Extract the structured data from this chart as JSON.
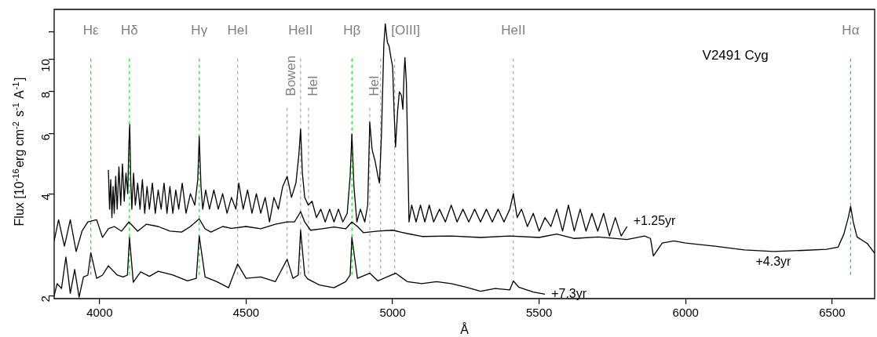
{
  "chart_data": {
    "type": "line",
    "xlabel": "Å",
    "ylabel": "Flux [10$^{-16}$erg cm$^{-2}$ s$^{-1}$ A$^{-1}$]",
    "annotations": [
      "V2491 Cyg"
    ],
    "log": "y",
    "marker": "none",
    "line_style": "solid",
    "legend": false,
    "grid": false,
    "xlim": [
      3845,
      6645
    ],
    "xticks": [
      4000,
      4500,
      5000,
      5500,
      6000,
      6500
    ],
    "ylim": [
      1.96,
      14
    ],
    "yticks": [
      2,
      4,
      6,
      8,
      10,
      {
        "value": 12,
        "label": null
      }
    ],
    "ref_lines": [
      {
        "axis": "x",
        "value": 3970,
        "label": "Hε",
        "color": "#00ee00",
        "line_style": "dashed"
      },
      {
        "axis": "x",
        "value": 4102,
        "label": "Hδ",
        "color": "#00ee00",
        "line_style": "dashed"
      },
      {
        "axis": "x",
        "value": 4340,
        "label": "Hγ",
        "color": "#00ee00",
        "line_style": "dashed"
      },
      {
        "axis": "x",
        "value": 4471,
        "label": "HeI",
        "color": "#aaaaaa",
        "line_style": "dashed"
      },
      {
        "axis": "x",
        "value": 4640,
        "label": "Bowen",
        "color": "#aaaaaa",
        "line_style": "dashed"
      },
      {
        "axis": "x",
        "value": 4686,
        "label": "HeII",
        "color": "#aaaaaa",
        "line_style": "dashed"
      },
      {
        "axis": "x",
        "value": 4713,
        "label": "HeI",
        "color": "#aaaaaa",
        "line_style": "dashed"
      },
      {
        "axis": "x",
        "value": 4861,
        "label": "Hβ",
        "color": "#00ee00",
        "line_style": "dashed"
      },
      {
        "axis": "x",
        "value": 4922,
        "label": "HeI",
        "color": "#aaaaaa",
        "line_style": "dashed"
      },
      {
        "axis": "x",
        "value": 4959,
        "label": null,
        "color": "#aaaaaa",
        "line_style": "dashed"
      },
      {
        "axis": "x",
        "value": 5007,
        "label": "[OIII]",
        "color": "#aaaaaa",
        "line_style": "dashed"
      },
      {
        "axis": "x",
        "value": 5412,
        "label": "HeII",
        "color": "#aaaaaa",
        "line_style": "dashed"
      },
      {
        "axis": "x",
        "value": 6563,
        "label": "Hα",
        "color": "#00ee00",
        "line_style": "dashed"
      }
    ],
    "series": [
      {
        "name": "+1.25yr",
        "color": "#000000",
        "x": [
          4030,
          4034,
          4038,
          4042,
          4046,
          4050,
          4055,
          4060,
          4066,
          4072,
          4078,
          4084,
          4090,
          4096,
          4100,
          4103,
          4106,
          4110,
          4116,
          4122,
          4130,
          4138,
          4146,
          4154,
          4162,
          4170,
          4180,
          4190,
          4200,
          4210,
          4220,
          4230,
          4240,
          4250,
          4260,
          4270,
          4282,
          4295,
          4310,
          4325,
          4335,
          4340,
          4346,
          4352,
          4362,
          4375,
          4390,
          4405,
          4420,
          4435,
          4450,
          4465,
          4475,
          4490,
          4505,
          4520,
          4535,
          4550,
          4565,
          4580,
          4595,
          4610,
          4625,
          4640,
          4655,
          4670,
          4680,
          4686,
          4692,
          4700,
          4712,
          4725,
          4740,
          4755,
          4770,
          4785,
          4800,
          4815,
          4830,
          4845,
          4855,
          4861,
          4868,
          4878,
          4890,
          4905,
          4915,
          4922,
          4930,
          4940,
          4950,
          4955,
          4962,
          4970,
          4975,
          4982,
          4988,
          4995,
          5000,
          5005,
          5010,
          5017,
          5023,
          5030,
          5035,
          5039,
          5042,
          5047,
          5052,
          5056,
          5065,
          5080,
          5095,
          5110,
          5125,
          5140,
          5160,
          5180,
          5200,
          5220,
          5240,
          5260,
          5280,
          5300,
          5320,
          5340,
          5360,
          5380,
          5400,
          5412,
          5425,
          5440,
          5460,
          5480,
          5500,
          5520,
          5540,
          5560,
          5580,
          5600,
          5620,
          5640,
          5660,
          5680,
          5700,
          5720,
          5740,
          5760,
          5780,
          5800
        ],
        "values": [
          4.7,
          3.6,
          4.4,
          3.4,
          4.2,
          3.5,
          4.5,
          3.6,
          4.8,
          3.7,
          4.9,
          3.8,
          4.6,
          4.0,
          5.6,
          6.4,
          4.5,
          3.6,
          4.6,
          3.7,
          4.3,
          3.6,
          4.4,
          3.5,
          4.2,
          3.6,
          4.3,
          3.5,
          4.1,
          3.6,
          4.3,
          3.5,
          4.2,
          3.5,
          4.1,
          3.6,
          4.3,
          3.5,
          4.0,
          3.7,
          4.4,
          5.9,
          4.2,
          3.6,
          4.1,
          3.6,
          4.1,
          3.6,
          4.0,
          3.5,
          3.9,
          3.6,
          4.3,
          3.6,
          4.1,
          3.5,
          4.0,
          3.5,
          3.9,
          3.3,
          3.9,
          3.6,
          4.2,
          4.5,
          3.9,
          4.3,
          5.2,
          6.2,
          4.6,
          3.9,
          3.7,
          3.8,
          3.4,
          3.6,
          3.3,
          3.6,
          3.3,
          3.6,
          3.3,
          3.5,
          4.5,
          6.0,
          4.2,
          3.3,
          3.6,
          3.3,
          3.7,
          6.5,
          5.4,
          5.0,
          4.5,
          4.3,
          6.0,
          11.0,
          12.7,
          11.2,
          10.9,
          10.0,
          9.5,
          7.0,
          5.5,
          7.0,
          8.0,
          7.8,
          7.1,
          9.0,
          10.1,
          8.5,
          5.0,
          3.3,
          3.7,
          3.3,
          3.7,
          3.3,
          3.7,
          3.3,
          3.6,
          3.3,
          3.7,
          3.3,
          3.6,
          3.3,
          3.6,
          3.3,
          3.6,
          3.3,
          3.6,
          3.3,
          3.6,
          4.0,
          3.4,
          3.6,
          3.2,
          3.5,
          3.1,
          3.4,
          3.2,
          3.6,
          3.1,
          3.7,
          3.1,
          3.6,
          3.1,
          3.5,
          3.1,
          3.5,
          3.0,
          3.4,
          3.0,
          3.2
        ]
      },
      {
        "name": "+4.3yr",
        "color": "#000000",
        "x": [
          3845,
          3860,
          3880,
          3900,
          3920,
          3940,
          3960,
          3990,
          4010,
          4030,
          4050,
          4075,
          4100,
          4130,
          4160,
          4200,
          4240,
          4280,
          4310,
          4340,
          4360,
          4380,
          4420,
          4450,
          4500,
          4550,
          4600,
          4640,
          4665,
          4686,
          4700,
          4720,
          4760,
          4800,
          4840,
          4861,
          4880,
          4900,
          4950,
          5000,
          5050,
          5100,
          5200,
          5300,
          5400,
          5500,
          5560,
          5620,
          5700,
          5800,
          5860,
          5880,
          5890,
          5920,
          5960,
          6000,
          6100,
          6200,
          6300,
          6400,
          6480,
          6520,
          6540,
          6555,
          6563,
          6572,
          6585,
          6620,
          6645
        ],
        "values": [
          2.9,
          3.35,
          2.8,
          3.35,
          2.7,
          3.1,
          3.3,
          3.35,
          2.97,
          3.15,
          3.2,
          3.1,
          3.3,
          3.1,
          3.25,
          3.2,
          3.1,
          3.08,
          3.2,
          3.37,
          3.15,
          3.08,
          3.2,
          3.16,
          3.2,
          3.15,
          3.25,
          3.3,
          3.3,
          3.54,
          3.3,
          3.12,
          3.15,
          3.19,
          3.15,
          3.3,
          3.2,
          3.07,
          3.1,
          3.12,
          3.05,
          2.99,
          3.0,
          2.97,
          3.0,
          2.97,
          3.04,
          2.95,
          2.98,
          2.93,
          3.0,
          2.95,
          2.62,
          2.86,
          2.9,
          2.86,
          2.8,
          2.73,
          2.7,
          2.72,
          2.74,
          2.78,
          3.04,
          3.4,
          3.67,
          3.3,
          2.98,
          2.85,
          2.67
        ]
      },
      {
        "name": "+7.3yr",
        "color": "#000000",
        "x": [
          3845,
          3855,
          3870,
          3885,
          3900,
          3915,
          3930,
          3945,
          3960,
          3970,
          3990,
          4010,
          4030,
          4060,
          4080,
          4095,
          4102,
          4115,
          4140,
          4170,
          4200,
          4250,
          4300,
          4330,
          4340,
          4360,
          4400,
          4440,
          4471,
          4500,
          4550,
          4600,
          4640,
          4660,
          4678,
          4686,
          4700,
          4710,
          4750,
          4800,
          4840,
          4855,
          4861,
          4880,
          4922,
          4950,
          5010,
          5050,
          5100,
          5150,
          5200,
          5250,
          5300,
          5350,
          5400,
          5412,
          5430,
          5450,
          5480,
          5520
        ],
        "values": [
          2.0,
          2.17,
          2.1,
          2.6,
          2.03,
          2.39,
          1.98,
          2.27,
          2.3,
          2.68,
          2.25,
          2.3,
          2.45,
          2.3,
          2.27,
          2.3,
          2.97,
          2.19,
          2.35,
          2.28,
          2.36,
          2.3,
          2.21,
          2.25,
          3.0,
          2.27,
          2.2,
          2.11,
          2.48,
          2.25,
          2.27,
          2.2,
          2.56,
          2.25,
          2.3,
          3.12,
          2.3,
          2.24,
          2.15,
          2.11,
          2.2,
          2.3,
          2.97,
          2.25,
          2.33,
          2.21,
          2.33,
          2.2,
          2.17,
          2.2,
          2.17,
          2.12,
          2.06,
          2.1,
          2.08,
          2.21,
          2.12,
          2.09,
          2.05,
          2.02
        ]
      }
    ]
  }
}
